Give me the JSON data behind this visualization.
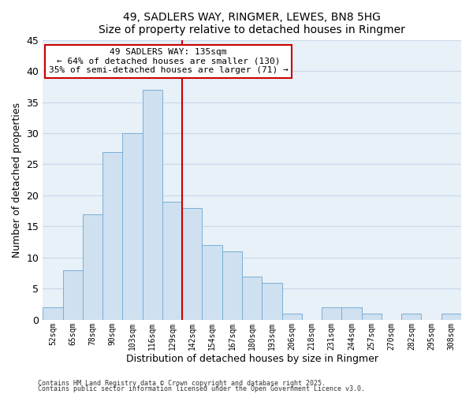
{
  "title": "49, SADLERS WAY, RINGMER, LEWES, BN8 5HG",
  "subtitle": "Size of property relative to detached houses in Ringmer",
  "xlabel": "Distribution of detached houses by size in Ringmer",
  "ylabel": "Number of detached properties",
  "bin_labels": [
    "52sqm",
    "65sqm",
    "78sqm",
    "90sqm",
    "103sqm",
    "116sqm",
    "129sqm",
    "142sqm",
    "154sqm",
    "167sqm",
    "180sqm",
    "193sqm",
    "206sqm",
    "218sqm",
    "231sqm",
    "244sqm",
    "257sqm",
    "270sqm",
    "282sqm",
    "295sqm",
    "308sqm"
  ],
  "bin_values": [
    2,
    8,
    17,
    27,
    30,
    37,
    19,
    18,
    12,
    11,
    7,
    6,
    1,
    0,
    2,
    2,
    1,
    0,
    1,
    0,
    1
  ],
  "bar_color": "#cfe0f0",
  "bar_edge_color": "#7aafd4",
  "bar_width": 1.0,
  "grid_color": "#c8d8e8",
  "bg_color": "#e8f0f8",
  "vline_x_index": 6.5,
  "vline_color": "#cc0000",
  "annotation_title": "49 SADLERS WAY: 135sqm",
  "annotation_line1": "← 64% of detached houses are smaller (130)",
  "annotation_line2": "35% of semi-detached houses are larger (71) →",
  "ylim": [
    0,
    45
  ],
  "yticks": [
    0,
    5,
    10,
    15,
    20,
    25,
    30,
    35,
    40,
    45
  ],
  "footer1": "Contains HM Land Registry data © Crown copyright and database right 2025.",
  "footer2": "Contains public sector information licensed under the Open Government Licence v3.0."
}
